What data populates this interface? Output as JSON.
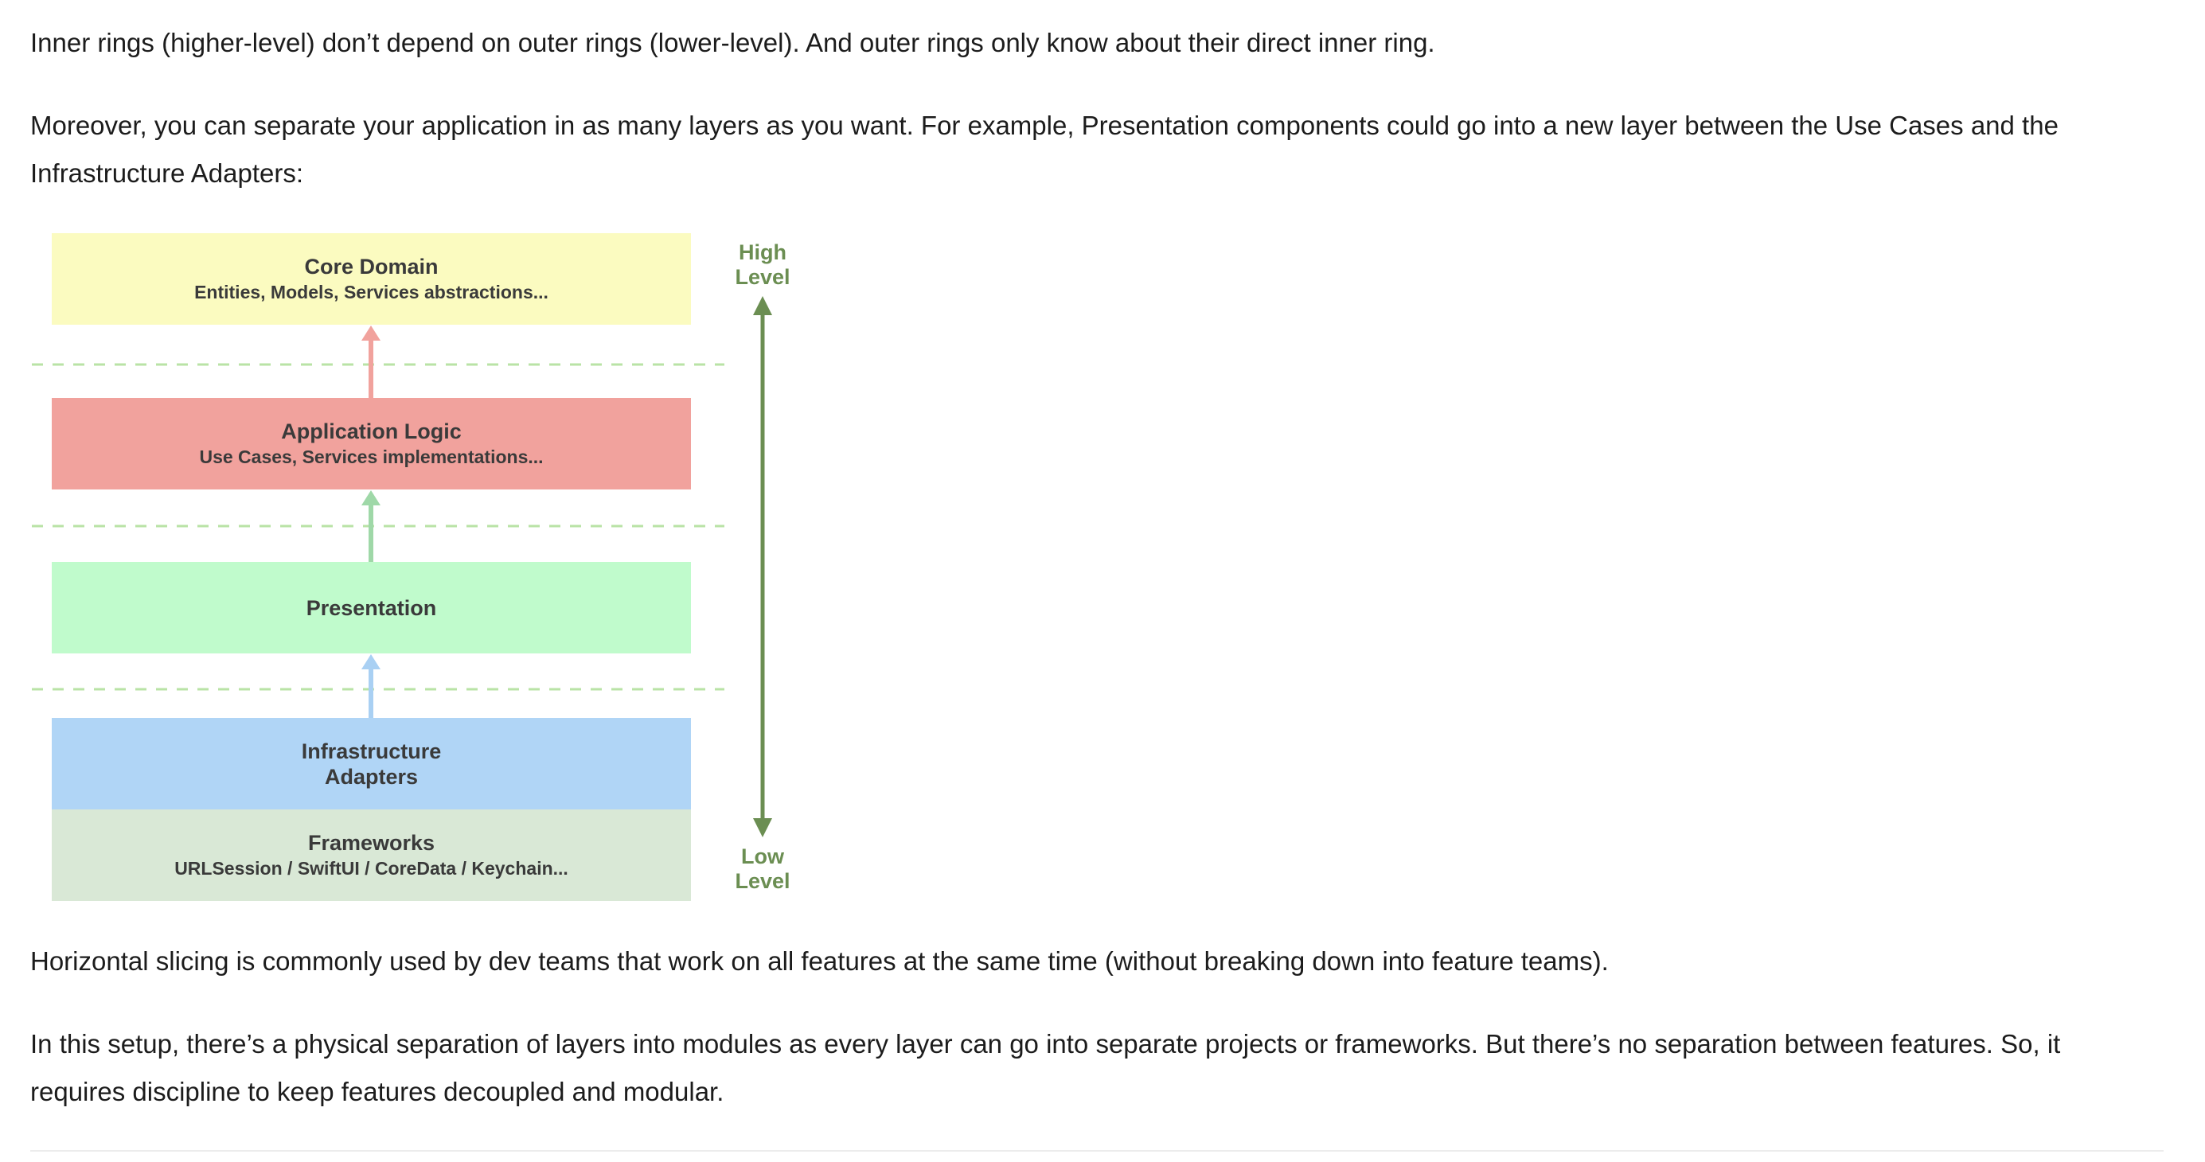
{
  "article": {
    "paragraph1": "Inner rings (higher-level) don’t depend on outer rings (lower-level). And outer rings only know about their direct inner ring.",
    "paragraph2": "Moreover, you can separate your application in as many layers as you want. For example, Presentation components could go into a new layer between the Use Cases and the Infrastructure Adapters:",
    "paragraph3": "Horizontal slicing is commonly used by dev teams that work on all features at the same time (without breaking down into feature teams).",
    "paragraph4": "In this setup, there’s a physical separation of layers into modules as every layer can go into separate projects or frameworks. But there’s no separation between features. So, it requires discipline to keep features decoupled and modular."
  },
  "diagram": {
    "layers": {
      "core": {
        "title": "Core Domain",
        "subtitle": "Entities, Models, Services abstractions...",
        "color": "#fbfbc0"
      },
      "app": {
        "title": "Application Logic",
        "subtitle": "Use Cases, Services implementations...",
        "color": "#f1a29d"
      },
      "presentation": {
        "title": "Presentation",
        "color": "#c0fbcc"
      },
      "infrastructure": {
        "title": "Infrastructure\nAdapters",
        "color": "#b0d5f6"
      },
      "frameworks": {
        "title": "Frameworks",
        "subtitle": "URLSession / SwiftUI / CoreData / Keychain...",
        "color": "#d9e8d6"
      }
    },
    "level_high": "High\nLevel",
    "level_low": "Low\nLevel",
    "colors": {
      "level_arrow": "#6b8e52",
      "divider": "#b9e3a6",
      "arrow_app_to_core": "#f1a29d",
      "arrow_pres_to_app": "#9fd8a8",
      "arrow_infra_to_pres": "#a9d0f3"
    }
  }
}
